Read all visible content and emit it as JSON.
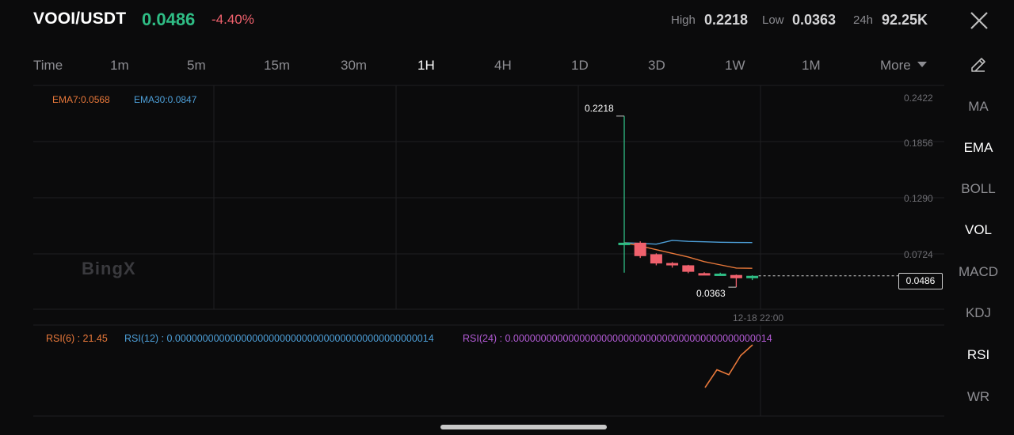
{
  "header": {
    "pair": "VOOI/USDT",
    "price": "0.0486",
    "change": "-4.40%",
    "high_label": "High",
    "high_value": "0.2218",
    "low_label": "Low",
    "low_value": "0.0363",
    "vol_label": "24h",
    "vol_value": "92.25K"
  },
  "timeframes": [
    "Time",
    "1m",
    "5m",
    "15m",
    "30m",
    "1H",
    "4H",
    "1D",
    "3D",
    "1W",
    "1M"
  ],
  "active_timeframe": "1H",
  "more_label": "More",
  "indicators": [
    "MA",
    "EMA",
    "BOLL",
    "VOL",
    "MACD",
    "KDJ",
    "RSI",
    "WR"
  ],
  "active_indicators": [
    "EMA",
    "VOL",
    "RSI"
  ],
  "chart": {
    "ema7": "EMA7:0.0568",
    "ema30": "EMA30:0.0847",
    "axis_prices": [
      "0.2422",
      "0.1856",
      "0.1290",
      "0.0724"
    ],
    "current_price_tag": "0.0486",
    "high_marker": "0.2218",
    "low_marker": "0.0363",
    "time_label": "12-18 22:00",
    "watermark": "BingX"
  },
  "rsi": {
    "rsi6": "RSI(6) : 21.45",
    "rsi12": "RSI(12) : 0.00000000000000000000000000000000000000000000014",
    "rsi24": "RSI(24) : 0.00000000000000000000000000000000000000000000014"
  },
  "colors": {
    "up": "#2fbd85",
    "down": "#f0616d",
    "ema7": "#e8783a",
    "ema30": "#4d9fd8",
    "rsi6": "#e8783a",
    "rsi12": "#4d9fd8",
    "rsi24": "#b35bd6"
  },
  "chart_data": {
    "type": "candlestick",
    "candles": [
      {
        "open": 0.0845,
        "high": 0.2218,
        "low": 0.052,
        "close": 0.0845,
        "dir": "up"
      },
      {
        "open": 0.0845,
        "high": 0.086,
        "low": 0.068,
        "close": 0.07,
        "dir": "down"
      },
      {
        "open": 0.072,
        "high": 0.073,
        "low": 0.06,
        "close": 0.062,
        "dir": "down"
      },
      {
        "open": 0.0625,
        "high": 0.0635,
        "low": 0.0575,
        "close": 0.061,
        "dir": "down"
      },
      {
        "open": 0.06,
        "high": 0.0605,
        "low": 0.0515,
        "close": 0.053,
        "dir": "down"
      },
      {
        "open": 0.0515,
        "high": 0.0525,
        "low": 0.0495,
        "close": 0.0505,
        "dir": "down"
      },
      {
        "open": 0.05,
        "high": 0.052,
        "low": 0.049,
        "close": 0.051,
        "dir": "up"
      },
      {
        "open": 0.0495,
        "high": 0.05,
        "low": 0.0363,
        "close": 0.046,
        "dir": "down"
      },
      {
        "open": 0.046,
        "high": 0.0492,
        "low": 0.044,
        "close": 0.0486,
        "dir": "up"
      }
    ],
    "ema7": [
      0.0845,
      0.081,
      0.077,
      0.073,
      0.069,
      0.064,
      0.0605,
      0.057,
      0.0568
    ],
    "ema30": [
      0.0845,
      0.0838,
      0.083,
      0.087,
      0.086,
      0.0855,
      0.085,
      0.0848,
      0.0847
    ],
    "ylim": [
      0.02,
      0.25
    ],
    "rsi6": [
      40,
      65,
      58,
      85,
      100
    ]
  }
}
